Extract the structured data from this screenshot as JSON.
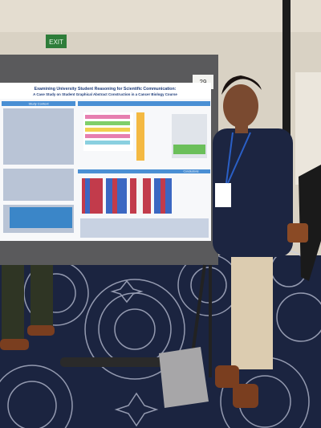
{
  "exit_sign": "EXIT",
  "board_number": "29",
  "poster": {
    "title": "Examining University Student Reasoning for Scientific Communication:",
    "subtitle": "A Case Study on Student Graphical Abstract Construction in a Cancer Biology Course",
    "sections": [
      "Study Context",
      "Conclusions"
    ]
  }
}
